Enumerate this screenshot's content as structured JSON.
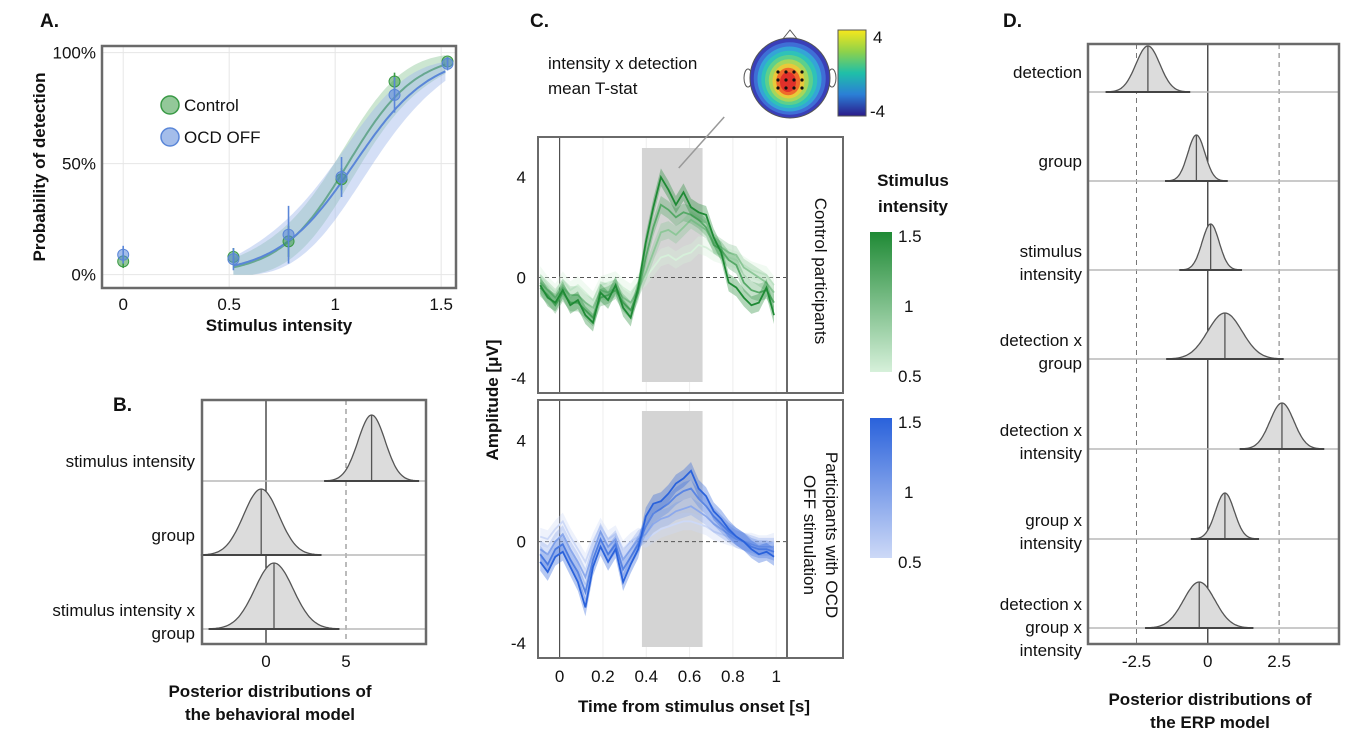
{
  "panels": {
    "A": {
      "letter": "A."
    },
    "B": {
      "letter": "B."
    },
    "C": {
      "letter": "C."
    },
    "D": {
      "letter": "D."
    }
  },
  "chart_data": [
    {
      "id": "A",
      "type": "scatter",
      "xlabel": "Stimulus intensity",
      "ylabel": "Probability of detection",
      "xlim": [
        -0.1,
        1.57
      ],
      "ylim": [
        -0.06,
        1.03
      ],
      "x_ticks": [
        0,
        0.5,
        1,
        1.5
      ],
      "x_tick_labels": [
        "0",
        "0.5",
        "1",
        "1.5"
      ],
      "y_ticks": [
        0,
        0.5,
        1
      ],
      "y_tick_labels": [
        "0%",
        "50%",
        "100%"
      ],
      "grid": true,
      "legend_position": "upper-left",
      "series": [
        {
          "name": "Control",
          "color": "#3a9a46",
          "x": [
            0,
            0.52,
            0.78,
            1.03,
            1.28,
            1.53
          ],
          "y": [
            0.06,
            0.08,
            0.15,
            0.43,
            0.87,
            0.96
          ],
          "err": [
            0.03,
            0.04,
            0.07,
            0.05,
            0.04,
            0.02
          ]
        },
        {
          "name": "OCD OFF",
          "color": "#5a86d8",
          "x": [
            0,
            0.52,
            0.78,
            1.03,
            1.28,
            1.53
          ],
          "y": [
            0.09,
            0.07,
            0.18,
            0.44,
            0.81,
            0.95
          ],
          "err": [
            0.04,
            0.05,
            0.13,
            0.09,
            0.08,
            0.03
          ]
        }
      ]
    },
    {
      "id": "B",
      "type": "density",
      "xlabel_lines": [
        "Posterior distributions of",
        "the behavioral model"
      ],
      "xlim": [
        -4,
        10
      ],
      "x_ticks": [
        0,
        5
      ],
      "x_tick_labels": [
        "0",
        "5"
      ],
      "rows": [
        {
          "label_lines": [
            "stimulus intensity"
          ],
          "mean": 6.6,
          "sd": 0.85
        },
        {
          "label_lines": [
            "group"
          ],
          "mean": -0.3,
          "sd": 1.1
        },
        {
          "label_lines": [
            "stimulus intensity x",
            "group"
          ],
          "mean": 0.5,
          "sd": 1.2
        }
      ]
    },
    {
      "id": "C",
      "type": "line",
      "xlabel": "Time from stimulus onset [s]",
      "ylabel": "Amplitude [μV]",
      "xlim": [
        -0.1,
        1.05
      ],
      "ylim": [
        -4.6,
        5.6
      ],
      "x_ticks": [
        0,
        0.2,
        0.4,
        0.6,
        0.8,
        1
      ],
      "x_tick_labels": [
        "0",
        "0.2",
        "0.4",
        "0.6",
        "0.8",
        "1"
      ],
      "y_ticks": [
        -4,
        0,
        4
      ],
      "y_tick_labels": [
        "-4",
        "0",
        "4"
      ],
      "highlight_window": [
        0.38,
        0.66
      ],
      "topo_title_lines": [
        "intensity x detection",
        "mean T-stat"
      ],
      "topo_colorbar_ticks": [
        "4",
        "-4"
      ],
      "intensity_legend_title_lines": [
        "Stimulus",
        "intensity"
      ],
      "intensity_ticks": [
        "1.5",
        "1",
        "0.5"
      ],
      "facets": [
        {
          "label_lines": [
            "Control participants"
          ],
          "palette": "green",
          "series": [
            {
              "intensity": 1.5,
              "y": [
                -0.3,
                -0.8,
                -1.0,
                -0.5,
                -1.1,
                -0.9,
                -1.5,
                -1.8,
                -0.6,
                -0.9,
                -0.3,
                -1.2,
                -1.6,
                -0.4,
                1.4,
                2.8,
                4.0,
                3.5,
                2.9,
                3.4,
                2.8,
                2.6,
                2.5,
                1.6,
                1.0,
                -0.2,
                -0.4,
                -0.8,
                -1.1,
                -1.0,
                -0.4,
                -1.5
              ]
            },
            {
              "intensity": 1.2,
              "y": [
                -0.4,
                -0.7,
                -1.1,
                -0.6,
                -1.0,
                -1.0,
                -1.3,
                -1.6,
                -0.8,
                -0.7,
                -0.5,
                -1.0,
                -1.3,
                -0.6,
                0.8,
                2.0,
                2.9,
                2.7,
                2.4,
                2.6,
                2.5,
                2.3,
                2.0,
                1.3,
                1.1,
                0.7,
                0.5,
                -0.2,
                -0.5,
                -0.6,
                -0.5,
                -1.0
              ]
            },
            {
              "intensity": 0.9,
              "y": [
                -0.2,
                -0.5,
                -0.8,
                -0.4,
                -0.7,
                -0.7,
                -1.0,
                -1.2,
                -0.5,
                -0.6,
                -0.4,
                -0.8,
                -1.0,
                -0.5,
                0.2,
                1.0,
                1.8,
                1.9,
                1.7,
                2.0,
                2.3,
                2.1,
                1.9,
                1.4,
                1.2,
                1.0,
                0.9,
                0.4,
                0.2,
                0.0,
                -0.2,
                -0.6
              ]
            },
            {
              "intensity": 0.5,
              "y": [
                0.1,
                -0.3,
                -0.6,
                -0.1,
                -0.5,
                -0.3,
                -0.6,
                -0.9,
                -0.3,
                -0.2,
                -0.1,
                -0.4,
                -0.6,
                -0.2,
                0.0,
                0.4,
                0.8,
                0.9,
                0.7,
                0.9,
                1.0,
                1.3,
                1.2,
                1.0,
                0.9,
                0.8,
                0.7,
                0.5,
                0.3,
                0.2,
                0.1,
                -0.3
              ]
            }
          ]
        },
        {
          "label_lines": [
            "Participants with OCD",
            "OFF stimulation"
          ],
          "palette": "blue",
          "series": [
            {
              "intensity": 1.5,
              "y": [
                -0.8,
                -1.2,
                -0.6,
                -0.4,
                -1.0,
                -1.6,
                -2.6,
                -1.0,
                -0.2,
                -0.8,
                -0.3,
                -1.6,
                -0.9,
                -0.3,
                1.0,
                1.5,
                1.6,
                1.9,
                2.3,
                2.5,
                2.8,
                2.1,
                1.8,
                1.2,
                0.9,
                0.5,
                0.2,
                0.0,
                -0.3,
                -0.5,
                -0.4,
                -0.6
              ]
            },
            {
              "intensity": 1.2,
              "y": [
                -0.5,
                -0.9,
                -0.3,
                -0.1,
                -0.7,
                -1.2,
                -2.0,
                -0.7,
                0.1,
                -0.5,
                -0.1,
                -1.1,
                -0.6,
                -0.1,
                0.6,
                1.1,
                1.3,
                1.5,
                1.8,
                2.0,
                2.1,
                1.7,
                1.4,
                1.0,
                0.7,
                0.4,
                0.2,
                0.0,
                -0.2,
                -0.3,
                -0.3,
                -0.4
              ]
            },
            {
              "intensity": 0.9,
              "y": [
                -0.3,
                -0.5,
                0.0,
                0.3,
                -0.3,
                -0.8,
                -1.4,
                -0.4,
                0.4,
                -0.2,
                0.1,
                -0.7,
                -0.3,
                0.1,
                0.3,
                0.7,
                0.9,
                1.0,
                1.2,
                1.3,
                1.4,
                1.2,
                1.0,
                0.7,
                0.5,
                0.3,
                0.1,
                0.0,
                -0.1,
                -0.2,
                -0.2,
                -0.2
              ]
            },
            {
              "intensity": 0.5,
              "y": [
                0.2,
                0.1,
                0.5,
                0.8,
                0.2,
                -0.3,
                -0.8,
                0.0,
                0.6,
                0.1,
                0.3,
                -0.3,
                0.0,
                0.2,
                0.1,
                0.3,
                0.5,
                0.6,
                0.7,
                0.8,
                0.8,
                0.7,
                0.6,
                0.4,
                0.3,
                0.2,
                0.1,
                0.0,
                0.0,
                -0.1,
                -0.1,
                0.0
              ]
            }
          ]
        }
      ]
    },
    {
      "id": "D",
      "type": "density",
      "xlabel_lines": [
        "Posterior distributions of",
        "the ERP model"
      ],
      "xlim": [
        -4.2,
        4.6
      ],
      "x_ticks": [
        -2.5,
        0,
        2.5
      ],
      "x_tick_labels": [
        "-2.5",
        "0",
        "2.5"
      ],
      "rows": [
        {
          "label_lines": [
            "detection"
          ],
          "mean": -2.1,
          "sd": 0.42
        },
        {
          "label_lines": [
            "group"
          ],
          "mean": -0.4,
          "sd": 0.3
        },
        {
          "label_lines": [
            "stimulus",
            "intensity"
          ],
          "mean": 0.1,
          "sd": 0.3
        },
        {
          "label_lines": [
            "detection x",
            "group"
          ],
          "mean": 0.6,
          "sd": 0.6
        },
        {
          "label_lines": [
            "detection x",
            "intensity"
          ],
          "mean": 2.6,
          "sd": 0.42
        },
        {
          "label_lines": [
            "group x",
            "intensity"
          ],
          "mean": 0.6,
          "sd": 0.33
        },
        {
          "label_lines": [
            "detection x",
            "group x",
            "intensity"
          ],
          "mean": -0.3,
          "sd": 0.55
        }
      ]
    }
  ]
}
